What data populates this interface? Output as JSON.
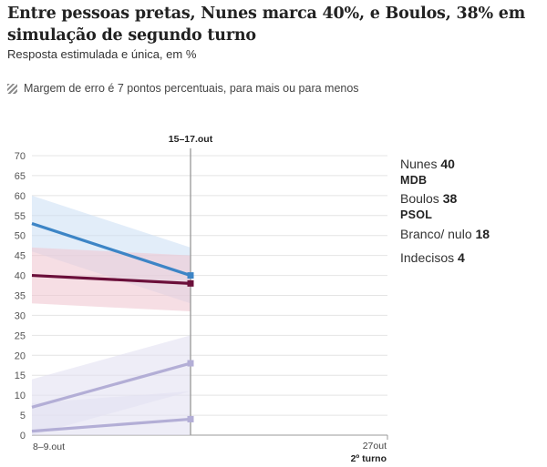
{
  "title": "Entre pessoas pretas, Nunes marca 40%, e Boulos, 38% em simulação de segundo turno",
  "subtitle": "Resposta estimulada e única, em %",
  "margin_note": "Margem de erro é 7 pontos percentuais, para mais ou para menos",
  "legend": [
    {
      "name": "Nunes",
      "value": "40",
      "party": "MDB"
    },
    {
      "name": "Boulos",
      "value": "38",
      "party": "PSOL"
    },
    {
      "name": "Branco/ nulo",
      "value": "18",
      "party": ""
    },
    {
      "name": "Indecisos",
      "value": "4",
      "party": ""
    }
  ],
  "chart_data": {
    "type": "line",
    "x_ticks": [
      "8–9.out",
      "15–17.out",
      "27out"
    ],
    "x_tick_note": "2º turno",
    "ylim": [
      0,
      70
    ],
    "y_ticks": [
      0,
      5,
      10,
      15,
      20,
      25,
      30,
      35,
      40,
      45,
      50,
      55,
      60,
      65,
      70
    ],
    "grid": true,
    "margin_of_error": 7,
    "series": [
      {
        "name": "Nunes",
        "values": [
          53,
          40
        ],
        "color": "#3d85c6",
        "band": "#cfe1f5"
      },
      {
        "name": "Boulos",
        "values": [
          40,
          38
        ],
        "color": "#6b0f3a",
        "band": "#f0c8d2"
      },
      {
        "name": "Branco/ nulo",
        "values": [
          7,
          18
        ],
        "color": "#b3aed6",
        "band": "#e3e1f1"
      },
      {
        "name": "Indecisos",
        "values": [
          1,
          4
        ],
        "color": "#b3aed6",
        "band": "#e3e1f1"
      }
    ]
  }
}
